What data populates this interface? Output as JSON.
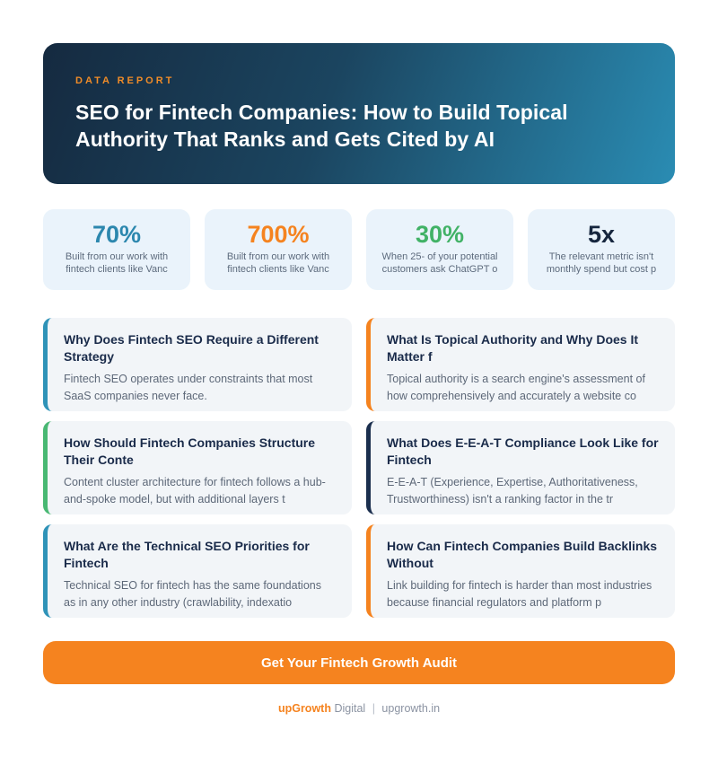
{
  "header": {
    "label": "DATA REPORT",
    "title": "SEO for Fintech Companies: How to Build Topical Authority That Ranks and Gets Cited by AI"
  },
  "stats": [
    {
      "value": "70%",
      "color": "#2c87ae",
      "desc": "Built from our work with fintech clients like Vanc"
    },
    {
      "value": "700%",
      "color": "#f5831f",
      "desc": "Built from our work with fintech clients like Vanc"
    },
    {
      "value": "30%",
      "color": "#41b266",
      "desc": "When 25- of your potential customers ask ChatGPT o"
    },
    {
      "value": "5x",
      "color": "#16263e",
      "desc": "The relevant metric isn't monthly spend but cost p"
    }
  ],
  "cards": [
    {
      "accent": "#2f93b8",
      "title": "Why Does Fintech SEO Require a Different Strategy",
      "body": "Fintech SEO operates under constraints that most SaaS companies never face."
    },
    {
      "accent": "#f5831f",
      "title": "What Is Topical Authority and Why Does It Matter f",
      "body": "Topical authority is a search engine's assessment of how comprehensively and accurately a website co"
    },
    {
      "accent": "#49b873",
      "title": "How Should Fintech Companies Structure Their Conte",
      "body": "Content cluster architecture for fintech follows a hub-and-spoke model, but with additional layers t"
    },
    {
      "accent": "#1b2f4e",
      "title": "What Does E-E-A-T Compliance Look Like for Fintech",
      "body": "E-E-A-T (Experience, Expertise, Authoritativeness, Trustworthiness) isn't a ranking factor in the tr"
    },
    {
      "accent": "#2f93b8",
      "title": "What Are the Technical SEO Priorities for Fintech",
      "body": "Technical SEO for fintech has the same foundations as in any other industry (crawlability, indexatio"
    },
    {
      "accent": "#f5831f",
      "title": "How Can Fintech Companies Build Backlinks Without",
      "body": "Link building for fintech is harder than most industries because financial regulators and platform p"
    }
  ],
  "cta": {
    "label": "Get Your Fintech Growth Audit"
  },
  "footer": {
    "brand": "upGrowth",
    "suffix": "Digital",
    "separator": "|",
    "site": "upgrowth.in"
  },
  "colors": {
    "header_gradient_start": "#152a40",
    "header_gradient_end": "#2a8cb3",
    "accent_orange": "#f5831f",
    "accent_teal": "#2f93b8",
    "accent_green": "#49b873",
    "accent_navy": "#1b2f4e",
    "stat_card_bg": "#eaf3fb",
    "content_card_bg": "#f2f5f8",
    "title_navy": "#1a2b4a",
    "body_gray": "#5d6878"
  }
}
